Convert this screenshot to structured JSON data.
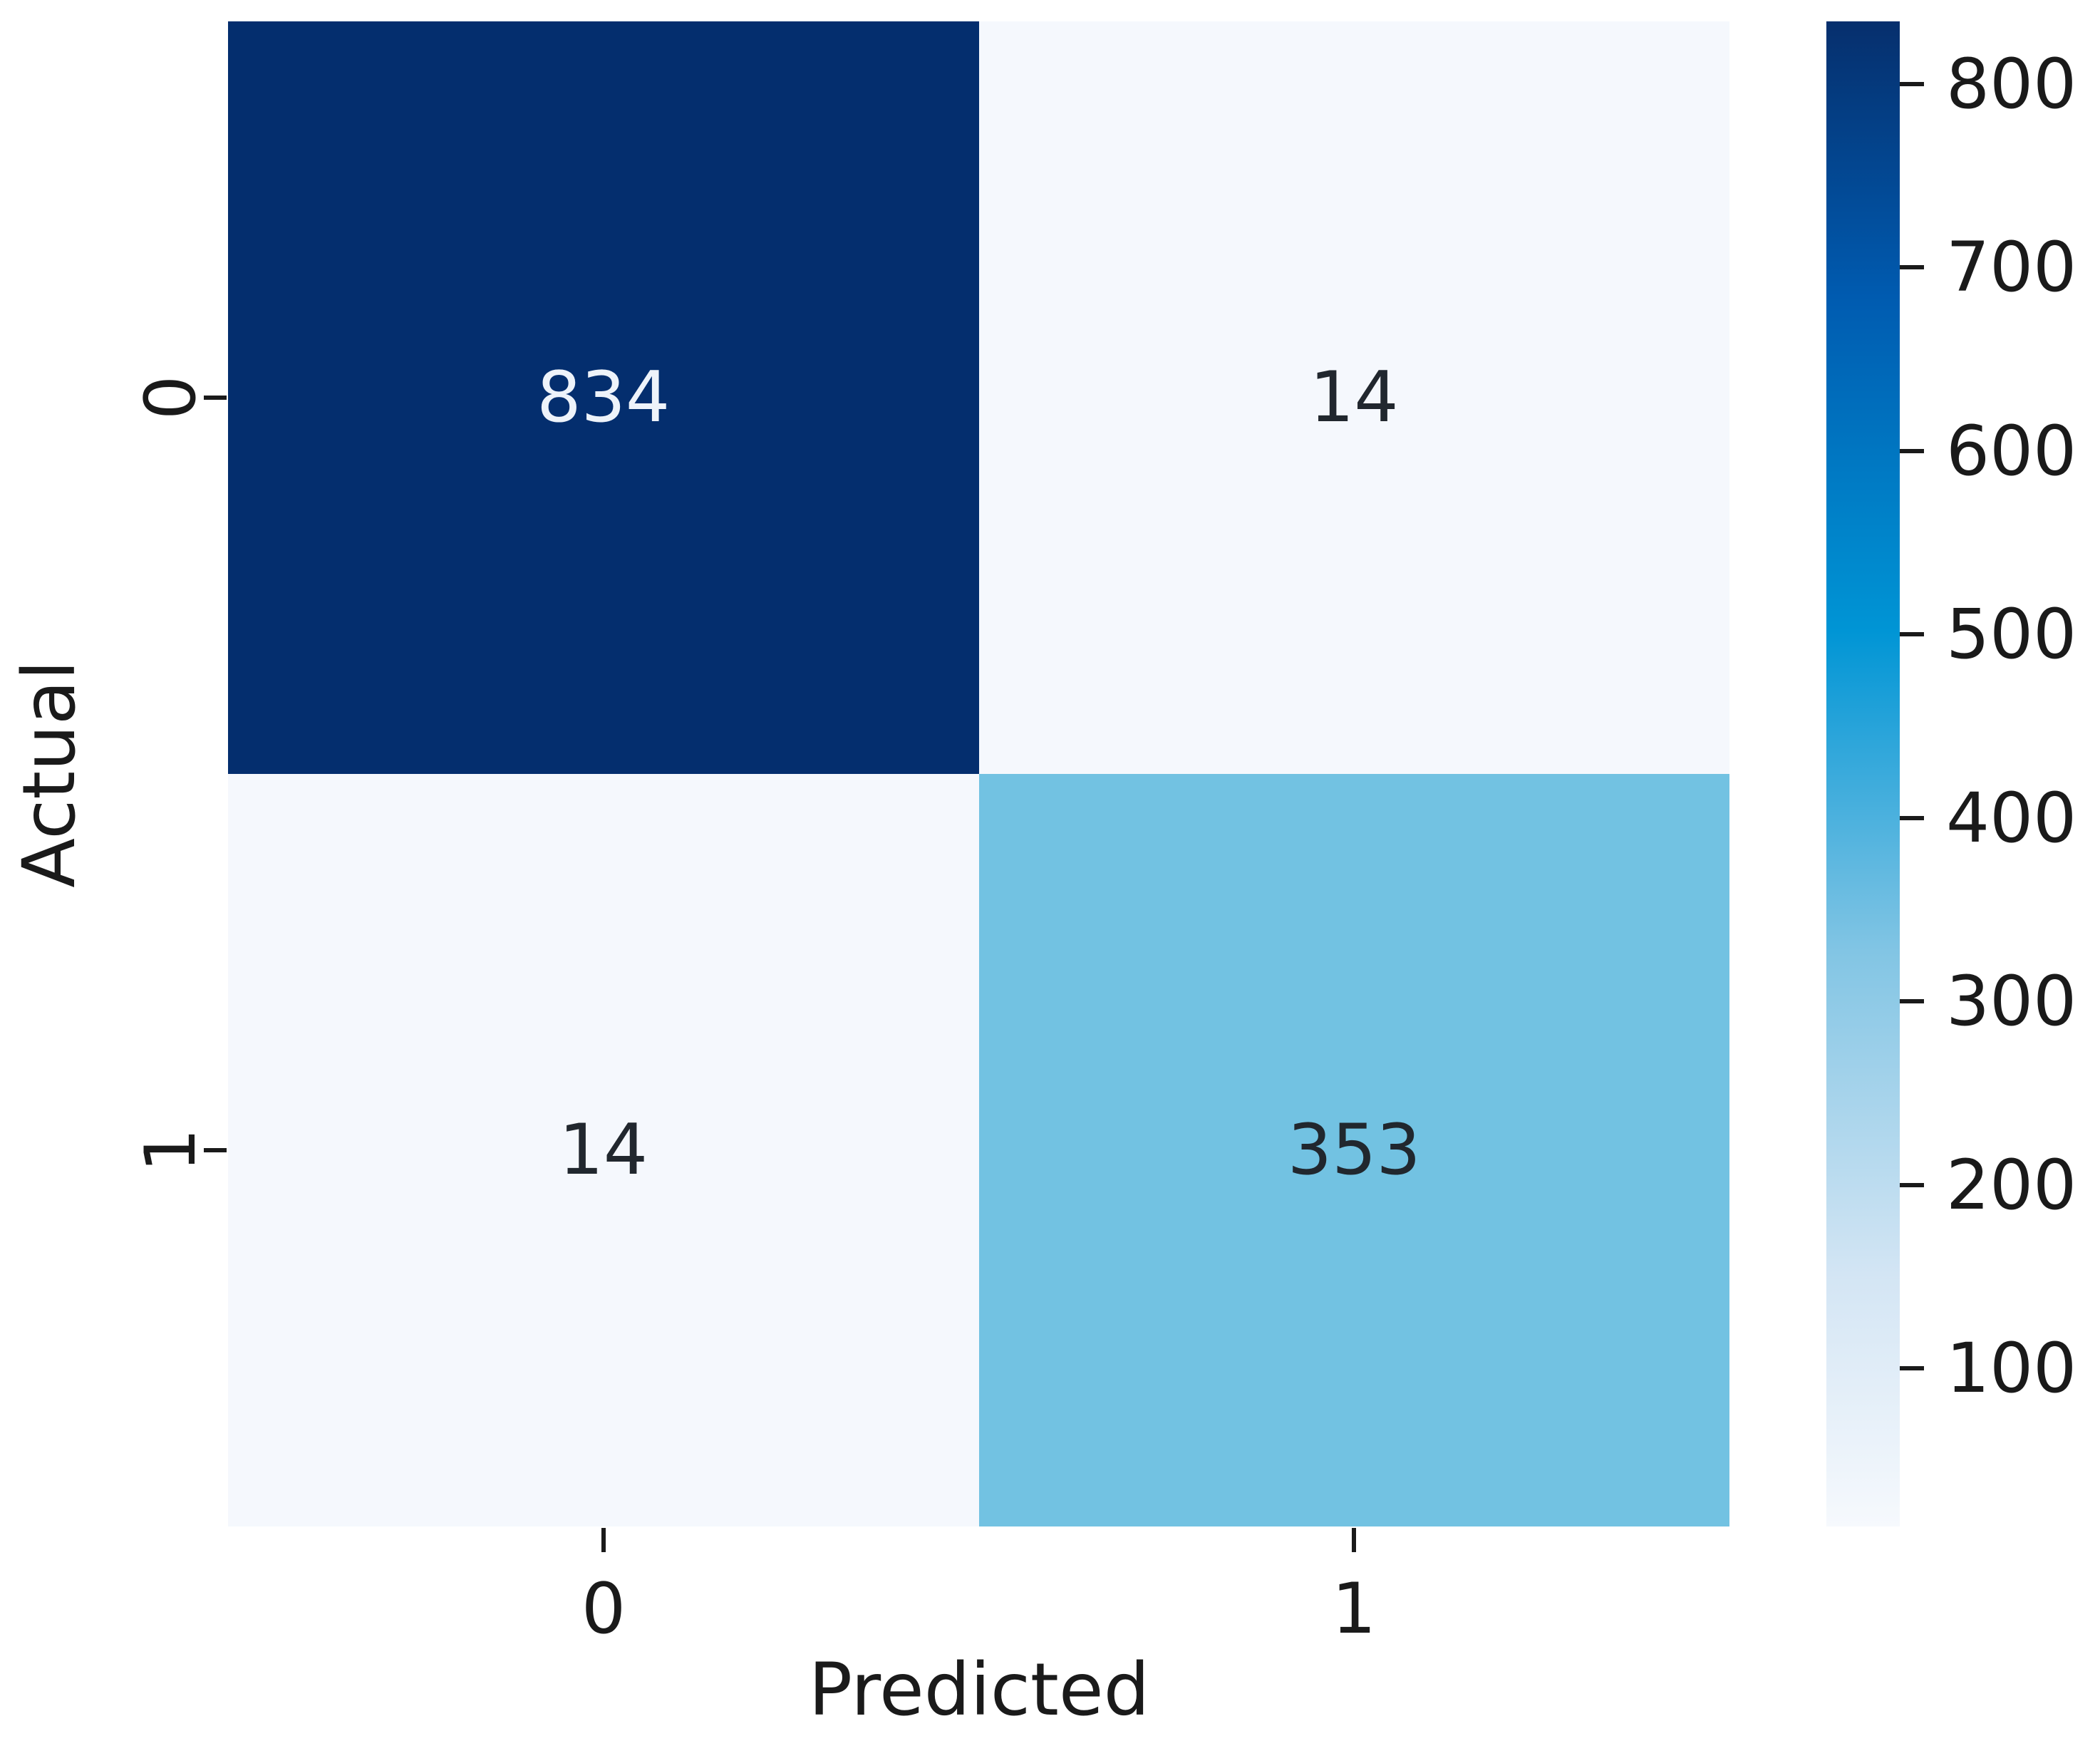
{
  "figure": {
    "background": "#ffffff",
    "text_color": "#1a1a1a"
  },
  "chart_data": {
    "type": "heatmap",
    "title": "",
    "xlabel": "Predicted",
    "ylabel": "Actual",
    "x_tick_labels": [
      "0",
      "1"
    ],
    "y_tick_labels": [
      "0",
      "1"
    ],
    "categories_x": [
      "0",
      "1"
    ],
    "categories_y": [
      "0",
      "1"
    ],
    "matrix": [
      [
        834,
        14
      ],
      [
        14,
        353
      ]
    ],
    "cells": [
      {
        "row": 0,
        "col": 0,
        "value": "834",
        "bg": "#042e6e",
        "fg": "#eef3fa"
      },
      {
        "row": 0,
        "col": 1,
        "value": "14",
        "bg": "#f5f8fd",
        "fg": "#21272e"
      },
      {
        "row": 1,
        "col": 0,
        "value": "14",
        "bg": "#f5f8fd",
        "fg": "#21272e"
      },
      {
        "row": 1,
        "col": 1,
        "value": "353",
        "bg": "#72c2e2",
        "fg": "#21272e"
      }
    ],
    "colorbar": {
      "vmin": 14,
      "vmax": 834,
      "tick_values": [
        800,
        700,
        600,
        500,
        400,
        300,
        200,
        100
      ],
      "gradient_stops": [
        {
          "pos": 0.0,
          "color": "#f6f9fd"
        },
        {
          "pos": 0.168,
          "color": "#d3e5f4"
        },
        {
          "pos": 0.382,
          "color": "#82c5e4"
        },
        {
          "pos": 0.595,
          "color": "#0095d5"
        },
        {
          "pos": 0.817,
          "color": "#005bb0"
        },
        {
          "pos": 1.0,
          "color": "#062f6d"
        }
      ]
    },
    "legend_position": "right-colorbar",
    "grid": false
  }
}
